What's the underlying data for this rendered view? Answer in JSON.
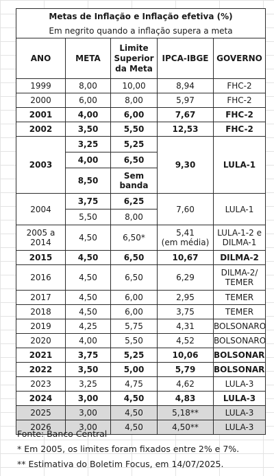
{
  "title": "Metas de Inflação e Inflação efetiva (%)",
  "subtitle": "Em negrito quando a inflação supera a meta",
  "headers": {
    "ano": "ANO",
    "meta": "META",
    "limite_l1": "Limite",
    "limite_l2": "Superior",
    "limite_l3": "da Meta",
    "ipca": "IPCA-IBGE",
    "governo": "GOVERNO"
  },
  "rows": {
    "y1999": {
      "ano": "1999",
      "meta": "8,00",
      "limite": "10,00",
      "ipca": "8,94",
      "governo": "FHC-2"
    },
    "y2000": {
      "ano": "2000",
      "meta": "6,00",
      "limite": "8,00",
      "ipca": "5,97",
      "governo": "FHC-2"
    },
    "y2001": {
      "ano": "2001",
      "meta": "4,00",
      "limite": "6,00",
      "ipca": "7,67",
      "governo": "FHC-2"
    },
    "y2002": {
      "ano": "2002",
      "meta": "3,50",
      "limite": "5,50",
      "ipca": "12,53",
      "governo": "FHC-2"
    },
    "y2003": {
      "ano": "2003",
      "meta_a": "3,25",
      "limite_a": "5,25",
      "meta_b": "4,00",
      "limite_b": "6,50",
      "meta_c": "8,50",
      "limite_c_l1": "Sem",
      "limite_c_l2": "banda",
      "ipca": "9,30",
      "governo": "LULA-1"
    },
    "y2004": {
      "ano": "2004",
      "meta_a": "3,75",
      "limite_a": "6,25",
      "meta_b": "5,50",
      "limite_b": "8,00",
      "ipca": "7,60",
      "governo": "LULA-1"
    },
    "y2005": {
      "ano_l1": "2005 a",
      "ano_l2": "2014",
      "meta": "4,50",
      "limite": "6,50*",
      "ipca_l1": "5,41",
      "ipca_l2": "(em média)",
      "gov_l1": "LULA-1-2 e",
      "gov_l2": "DILMA-1"
    },
    "y2015": {
      "ano": "2015",
      "meta": "4,50",
      "limite": "6,50",
      "ipca": "10,67",
      "governo": "DILMA-2"
    },
    "y2016": {
      "ano": "2016",
      "meta": "4,50",
      "limite": "6,50",
      "ipca": "6,29",
      "gov_l1": "DILMA-2/",
      "gov_l2": "TEMER"
    },
    "y2017": {
      "ano": "2017",
      "meta": "4,50",
      "limite": "6,00",
      "ipca": "2,95",
      "governo": "TEMER"
    },
    "y2018": {
      "ano": "2018",
      "meta": "4,50",
      "limite": "6,00",
      "ipca": "3,75",
      "governo": "TEMER"
    },
    "y2019": {
      "ano": "2019",
      "meta": "4,25",
      "limite": "5,75",
      "ipca": "4,31",
      "governo": "BOLSONARO"
    },
    "y2020": {
      "ano": "2020",
      "meta": "4,00",
      "limite": "5,50",
      "ipca": "4,52",
      "governo": "BOLSONARO"
    },
    "y2021": {
      "ano": "2021",
      "meta": "3,75",
      "limite": "5,25",
      "ipca": "10,06",
      "governo": "BOLSONARO"
    },
    "y2022": {
      "ano": "2022",
      "meta": "3,50",
      "limite": "5,00",
      "ipca": "5,79",
      "governo": "BOLSONARO"
    },
    "y2023": {
      "ano": "2023",
      "meta": "3,25",
      "limite": "4,75",
      "ipca": "4,62",
      "governo": "LULA-3"
    },
    "y2024": {
      "ano": "2024",
      "meta": "3,00",
      "limite": "4,50",
      "ipca": "4,83",
      "governo": "LULA-3"
    },
    "y2025": {
      "ano": "2025",
      "meta": "3,00",
      "limite": "4,50",
      "ipca": "5,18**",
      "governo": "LULA-3"
    },
    "y2026": {
      "ano": "2026",
      "meta": "3,00",
      "limite": "4,50",
      "ipca": "4,50**",
      "governo": "LULA-3"
    }
  },
  "footnotes": {
    "fonte": "Fonte: Banco Central",
    "note1": "* Em 2005, os limites foram fixados entre 2% e 7%.",
    "note2": "** Estimativa do Boletim Focus, em 14/07/2025."
  },
  "colors": {
    "shaded_row": "#d9d9d9",
    "grid": "#e3e3e3",
    "border": "#2b2b2b"
  }
}
